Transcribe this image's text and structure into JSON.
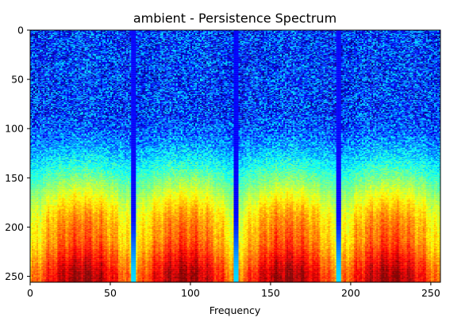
{
  "chart_data": {
    "type": "heatmap",
    "title": "ambient - Persistence Spectrum",
    "xlabel": "Frequency",
    "ylabel": "",
    "xlim": [
      0,
      256
    ],
    "ylim": [
      256,
      0
    ],
    "x_ticks": [
      {
        "value": 0,
        "label": "0"
      },
      {
        "value": 50,
        "label": "50"
      },
      {
        "value": 100,
        "label": "100"
      },
      {
        "value": 150,
        "label": "150"
      },
      {
        "value": 200,
        "label": "200"
      },
      {
        "value": 250,
        "label": "250"
      }
    ],
    "y_ticks": [
      {
        "value": 0,
        "label": "0"
      },
      {
        "value": 50,
        "label": "50"
      },
      {
        "value": 100,
        "label": "100"
      },
      {
        "value": 150,
        "label": "150"
      },
      {
        "value": 200,
        "label": "200"
      },
      {
        "value": 250,
        "label": "250"
      }
    ],
    "colormap": "jet",
    "colormap_stops": [
      "#00007f",
      "#0000ff",
      "#007fff",
      "#00ffff",
      "#7fff7f",
      "#ffff00",
      "#ff7f00",
      "#ff0000",
      "#7f0000"
    ],
    "grid": false,
    "pattern": {
      "dark_columns": [
        64,
        128,
        192
      ],
      "bright_edge_columns": [
        65,
        129,
        193
      ],
      "periodic_lobe_width": 64,
      "low_intensity_rows": [
        0,
        100
      ],
      "transition_rows": [
        100,
        170
      ],
      "high_intensity_rows": [
        170,
        256
      ]
    }
  }
}
